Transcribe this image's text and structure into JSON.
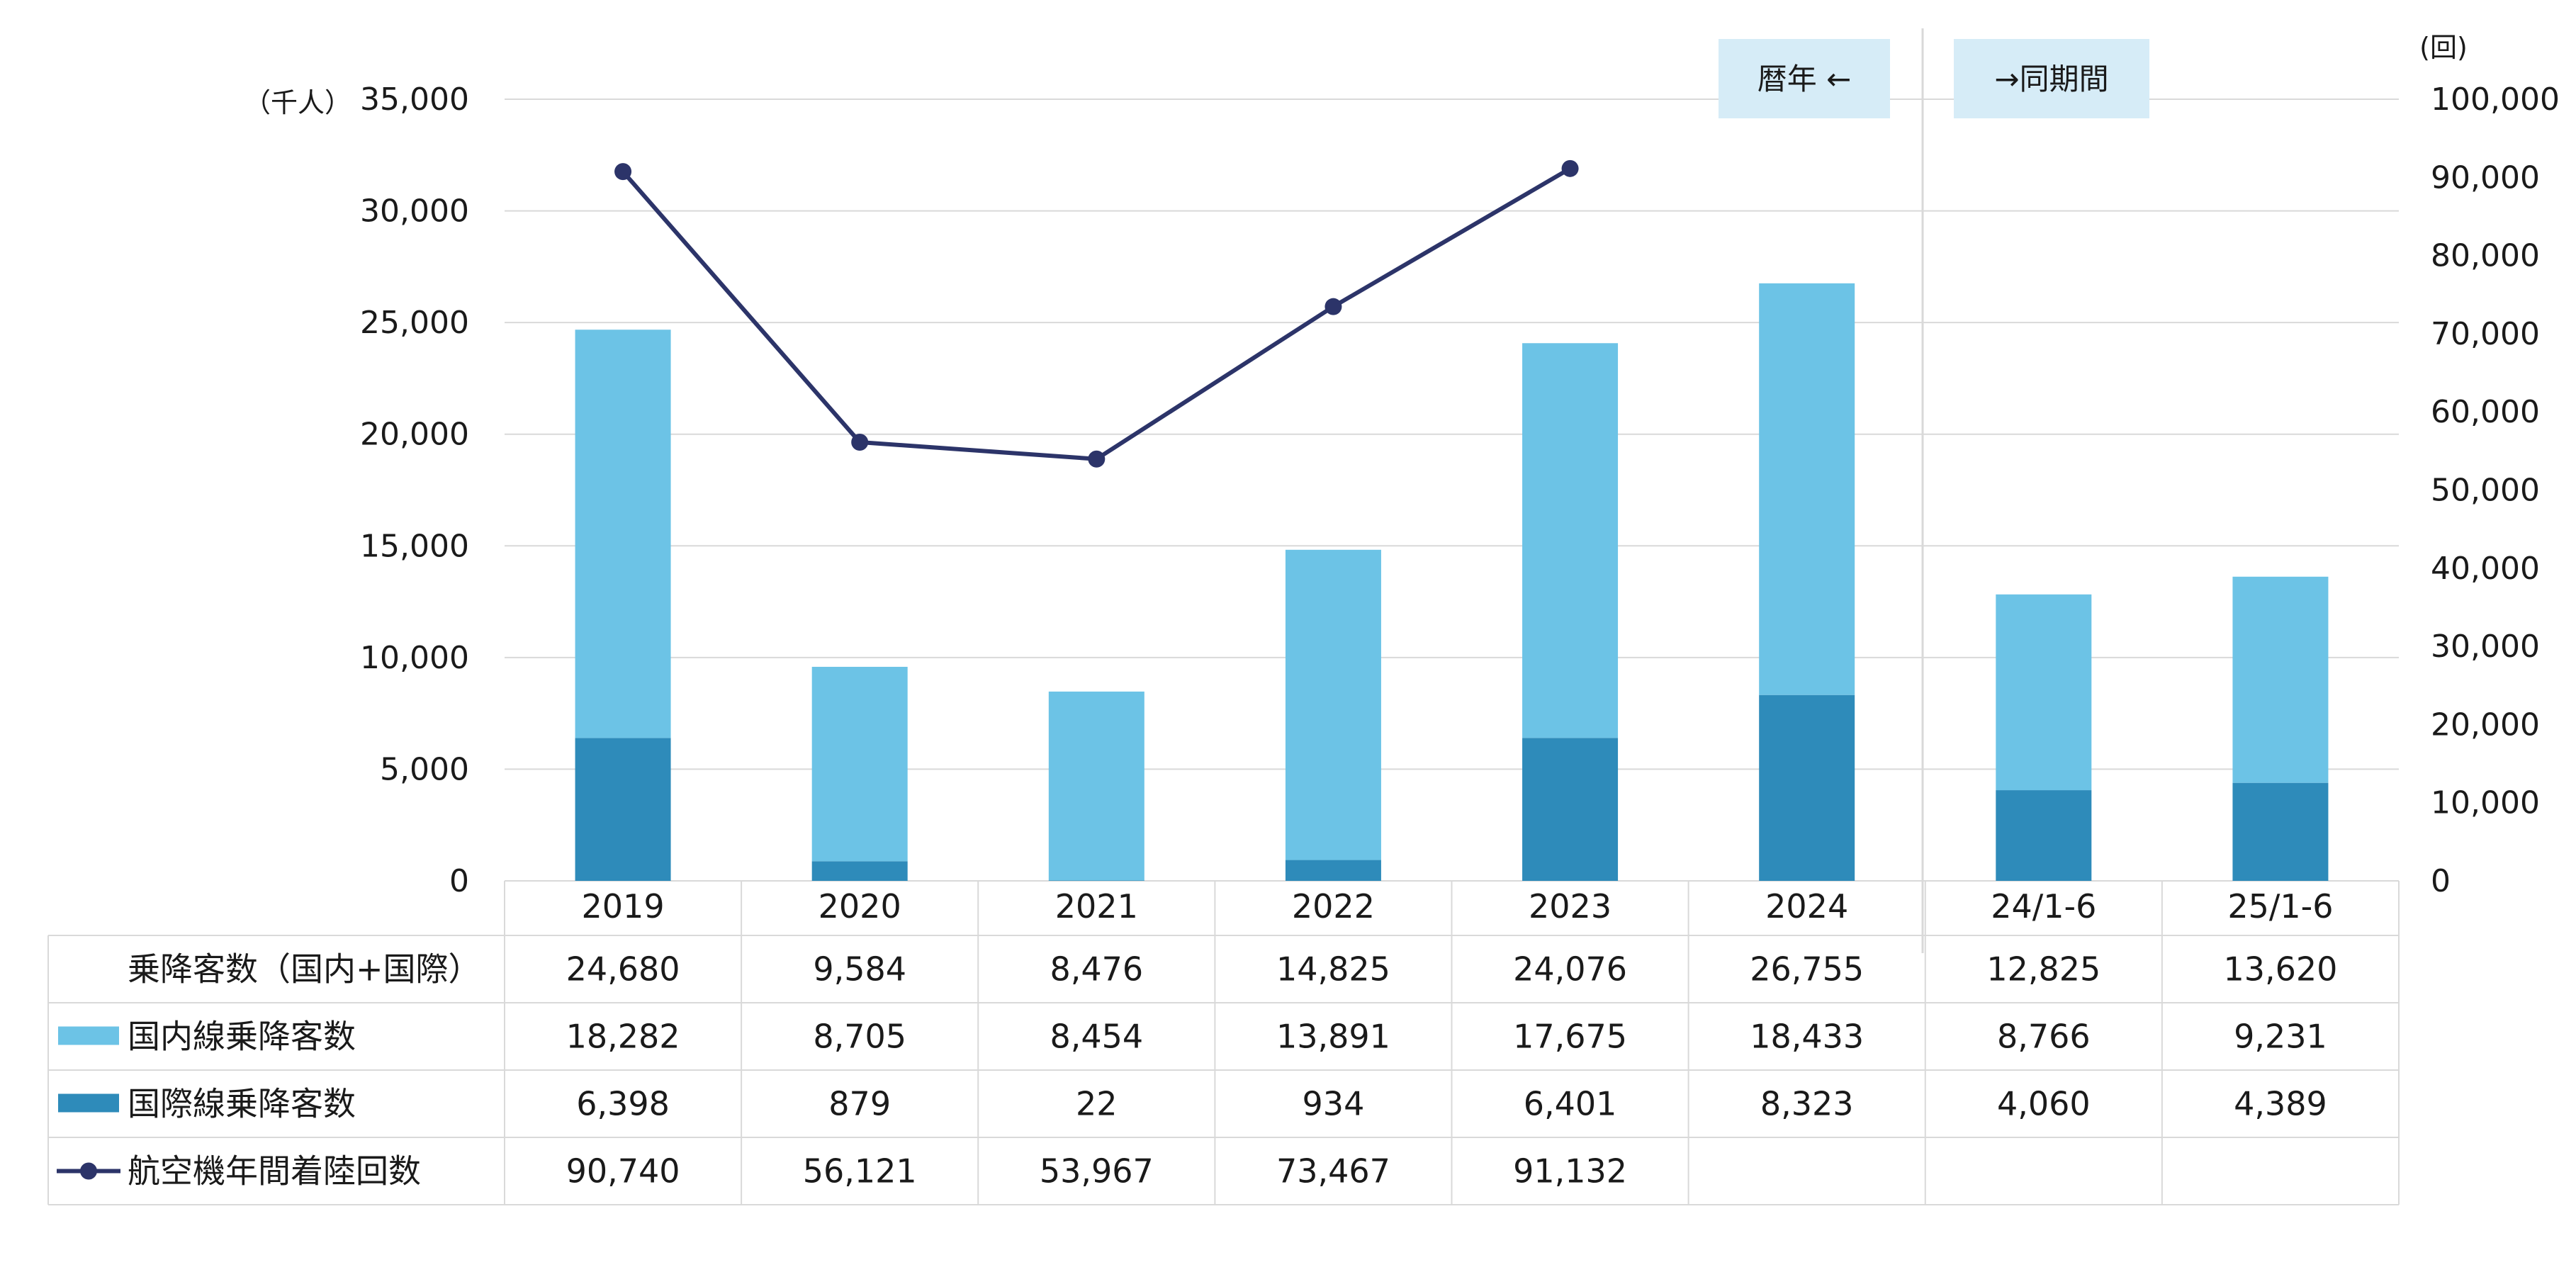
{
  "chart_data": {
    "type": "bar",
    "stacked": true,
    "categories": [
      "2019",
      "2020",
      "2021",
      "2022",
      "2023",
      "2024",
      "24/1-6",
      "25/1-6"
    ],
    "series": [
      {
        "name": "国際線乗降客数",
        "type": "bar",
        "axis": "left",
        "color": "#2e8bba",
        "values": [
          6398,
          879,
          22,
          934,
          6401,
          8323,
          4060,
          4389
        ]
      },
      {
        "name": "国内線乗降客数",
        "type": "bar",
        "axis": "left",
        "color": "#6cc3e6",
        "values": [
          18282,
          8705,
          8454,
          13891,
          17675,
          18433,
          8766,
          9231
        ]
      },
      {
        "name": "航空機年間着陸回数",
        "type": "line",
        "axis": "right",
        "color": "#2c3469",
        "values": [
          90740,
          56121,
          53967,
          73467,
          91132,
          null,
          null,
          null
        ]
      }
    ],
    "left_axis": {
      "unit": "（千人）",
      "min": 0,
      "max": 35000,
      "ticks": [
        "0",
        "5,000",
        "10,000",
        "15,000",
        "20,000",
        "25,000",
        "30,000",
        "35,000"
      ]
    },
    "right_axis": {
      "unit": "(回)",
      "min": 0,
      "max": 100000,
      "ticks": [
        "0",
        "10,000",
        "20,000",
        "30,000",
        "40,000",
        "50,000",
        "60,000",
        "70,000",
        "80,000",
        "90,000",
        "100,000"
      ]
    },
    "grid": true,
    "period_labels": {
      "calendar_year": "暦年 ←",
      "same_period": "→同期間"
    },
    "table": {
      "row_labels": [
        "乗降客数（国内+国際）",
        "国内線乗降客数",
        "国際線乗降客数",
        "航空機年間着陸回数"
      ],
      "rows": [
        [
          "24,680",
          "9,584",
          "8,476",
          "14,825",
          "24,076",
          "26,755",
          "12,825",
          "13,620"
        ],
        [
          "18,282",
          "8,705",
          "8,454",
          "13,891",
          "17,675",
          "18,433",
          "8,766",
          "9,231"
        ],
        [
          "6,398",
          "879",
          "22",
          "934",
          "6,401",
          "8,323",
          "4,060",
          "4,389"
        ],
        [
          "90,740",
          "56,121",
          "53,967",
          "73,467",
          "91,132",
          "",
          "",
          ""
        ]
      ]
    }
  }
}
